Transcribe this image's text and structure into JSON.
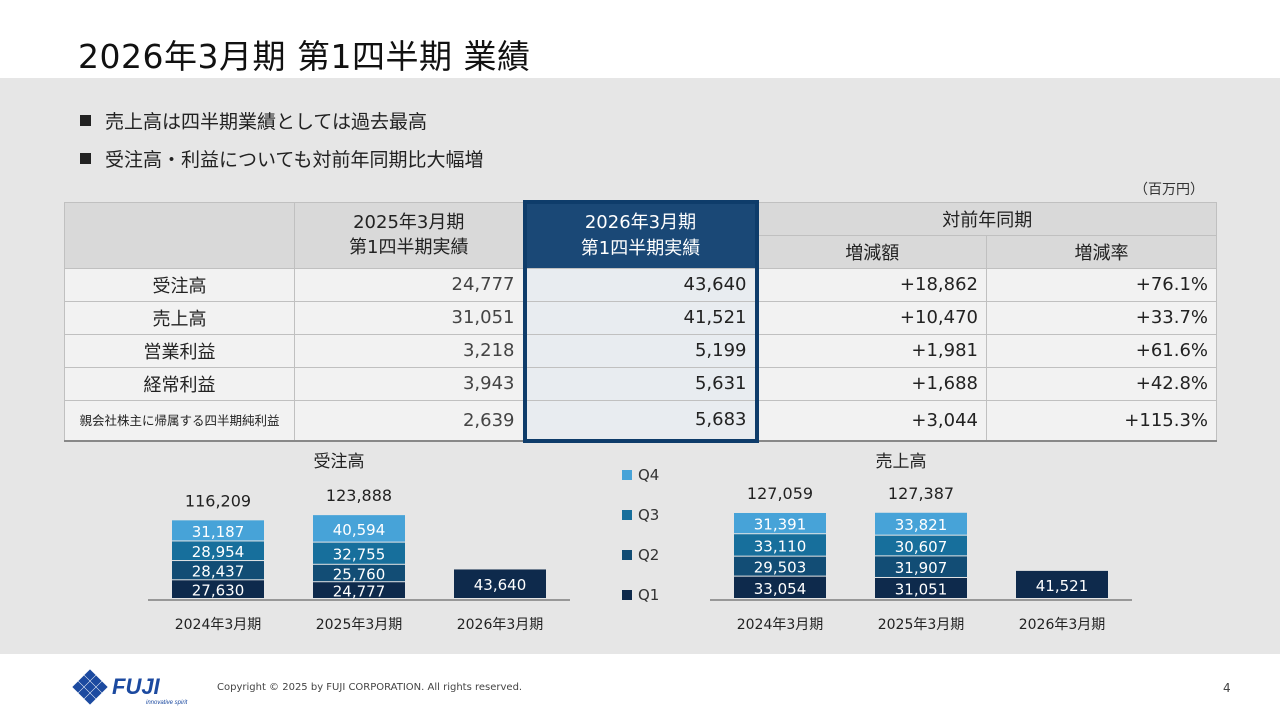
{
  "title": "2026年3月期 第1四半期 業績",
  "bullets": [
    "売上高は四半期業績としては過去最高",
    "受注高・利益についても対前年同期比大幅増"
  ],
  "unit": "（百万円）",
  "table": {
    "col_prev": [
      "2025年3月期",
      "第1四半期実績"
    ],
    "col_cur": [
      "2026年3月期",
      "第1四半期実績"
    ],
    "col_yoy": "対前年同期",
    "col_diff": "増減額",
    "col_rate": "増減率",
    "rows": [
      {
        "item": "受注高",
        "prev": "24,777",
        "cur": "43,640",
        "diff": "+18,862",
        "rate": "+76.1%"
      },
      {
        "item": "売上高",
        "prev": "31,051",
        "cur": "41,521",
        "diff": "+10,470",
        "rate": "+33.7%"
      },
      {
        "item": "営業利益",
        "prev": "3,218",
        "cur": "5,199",
        "diff": "+1,981",
        "rate": "+61.6%"
      },
      {
        "item": "経常利益",
        "prev": "3,943",
        "cur": "5,631",
        "diff": "+1,688",
        "rate": "+42.8%"
      },
      {
        "item": "親会社株主に帰属する四半期純利益",
        "prev": "2,639",
        "cur": "5,683",
        "diff": "+3,044",
        "rate": "+115.3%"
      }
    ]
  },
  "colors": {
    "Q1": "#0e2a4c",
    "Q2": "#124d75",
    "Q3": "#176f9c",
    "Q4": "#47a3d8",
    "header_cur": "#1a4876"
  },
  "chart_data": [
    {
      "type": "bar",
      "stacked": true,
      "title": "受注高",
      "categories": [
        "2024年3月期",
        "2025年3月期",
        "2026年3月期"
      ],
      "totals": [
        "116,209",
        "123,888",
        ""
      ],
      "series": [
        {
          "name": "Q1",
          "values": [
            27630,
            24777,
            43640
          ]
        },
        {
          "name": "Q2",
          "values": [
            28437,
            25760,
            null
          ]
        },
        {
          "name": "Q3",
          "values": [
            28954,
            32755,
            null
          ]
        },
        {
          "name": "Q4",
          "values": [
            31187,
            40594,
            null
          ]
        }
      ]
    },
    {
      "type": "bar",
      "stacked": true,
      "title": "売上高",
      "categories": [
        "2024年3月期",
        "2025年3月期",
        "2026年3月期"
      ],
      "totals": [
        "127,059",
        "127,387",
        ""
      ],
      "series": [
        {
          "name": "Q1",
          "values": [
            33054,
            31051,
            41521
          ]
        },
        {
          "name": "Q2",
          "values": [
            29503,
            31907,
            null
          ]
        },
        {
          "name": "Q3",
          "values": [
            33110,
            30607,
            null
          ]
        },
        {
          "name": "Q4",
          "values": [
            31391,
            33821,
            null
          ]
        }
      ]
    }
  ],
  "legend": [
    "Q4",
    "Q3",
    "Q2",
    "Q1"
  ],
  "footer": {
    "logo_text": "FUJI",
    "tagline": "innovative spirit",
    "copyright": "Copyright © 2025 by FUJI CORPORATION. All rights reserved.",
    "page": "4"
  }
}
